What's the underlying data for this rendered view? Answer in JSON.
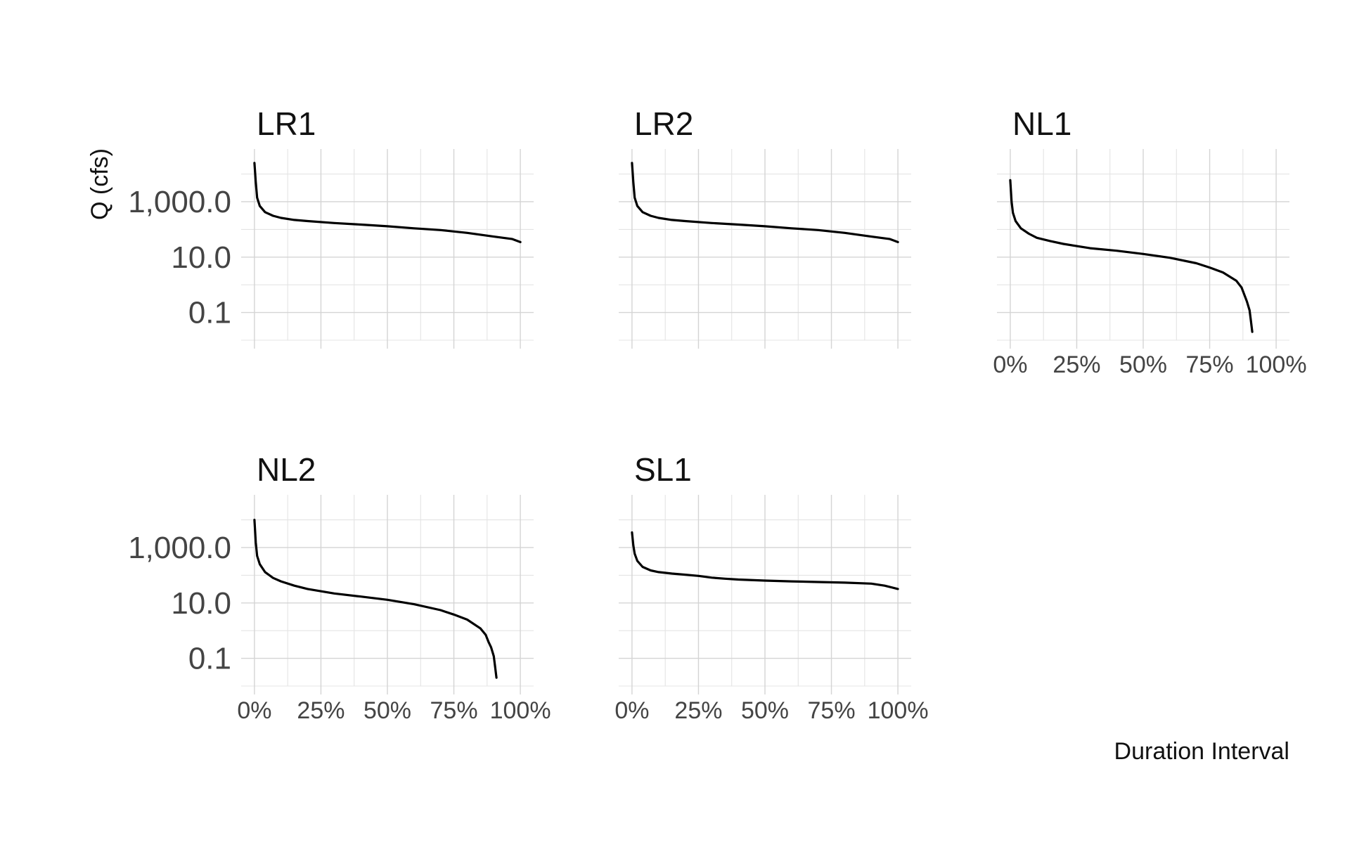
{
  "chart_data": {
    "type": "line",
    "title": "",
    "xlabel": "Duration Interval",
    "ylabel": "Q (cfs)",
    "x_scale": "linear",
    "y_scale": "log",
    "xlim": [
      -0.05,
      1.05
    ],
    "ylim": [
      0.01,
      80000
    ],
    "x_ticks": [
      0,
      0.25,
      0.5,
      0.75,
      1.0
    ],
    "x_tick_labels": [
      "0%",
      "25%",
      "50%",
      "75%",
      "100%"
    ],
    "y_ticks": [
      0.1,
      10,
      1000
    ],
    "y_tick_labels": [
      "0.1",
      "10.0",
      "1,000.0"
    ],
    "grid": true,
    "layout": "facet_wrap 3 columns, shared axes",
    "series_color": "#000000",
    "panels": [
      {
        "name": "LR1",
        "x": [
          0,
          0.005,
          0.01,
          0.02,
          0.04,
          0.07,
          0.1,
          0.15,
          0.2,
          0.3,
          0.4,
          0.5,
          0.6,
          0.7,
          0.8,
          0.9,
          0.97,
          1.0
        ],
        "y": [
          25000,
          5000,
          1400,
          700,
          420,
          310,
          260,
          220,
          200,
          170,
          150,
          130,
          110,
          95,
          75,
          55,
          45,
          35
        ]
      },
      {
        "name": "LR2",
        "x": [
          0,
          0.005,
          0.01,
          0.02,
          0.04,
          0.07,
          0.1,
          0.15,
          0.2,
          0.3,
          0.4,
          0.5,
          0.6,
          0.7,
          0.8,
          0.9,
          0.97,
          1.0
        ],
        "y": [
          25000,
          5000,
          1400,
          700,
          420,
          310,
          260,
          220,
          200,
          170,
          150,
          130,
          110,
          95,
          75,
          55,
          45,
          35
        ]
      },
      {
        "name": "NL1",
        "x": [
          0,
          0.005,
          0.01,
          0.02,
          0.04,
          0.07,
          0.1,
          0.15,
          0.2,
          0.3,
          0.4,
          0.5,
          0.6,
          0.7,
          0.75,
          0.8,
          0.85,
          0.87,
          0.88,
          0.89,
          0.9,
          0.905,
          0.91
        ],
        "y": [
          6000,
          1000,
          400,
          200,
          110,
          70,
          50,
          38,
          30,
          21,
          17,
          13,
          9.5,
          6,
          4.2,
          2.8,
          1.4,
          0.8,
          0.45,
          0.25,
          0.12,
          0.05,
          0.02
        ]
      },
      {
        "name": "NL2",
        "x": [
          0,
          0.005,
          0.01,
          0.02,
          0.04,
          0.07,
          0.1,
          0.15,
          0.2,
          0.3,
          0.4,
          0.5,
          0.6,
          0.7,
          0.75,
          0.8,
          0.85,
          0.87,
          0.88,
          0.89,
          0.9,
          0.905,
          0.91
        ],
        "y": [
          10000,
          1500,
          500,
          250,
          130,
          80,
          60,
          42,
          32,
          22,
          17,
          13,
          9,
          5.5,
          3.8,
          2.5,
          1.2,
          0.7,
          0.4,
          0.25,
          0.12,
          0.05,
          0.02
        ]
      },
      {
        "name": "SL1",
        "x": [
          0,
          0.005,
          0.01,
          0.02,
          0.04,
          0.07,
          0.1,
          0.15,
          0.2,
          0.25,
          0.3,
          0.35,
          0.4,
          0.5,
          0.6,
          0.7,
          0.8,
          0.9,
          0.95,
          1.0
        ],
        "y": [
          3500,
          1200,
          600,
          330,
          200,
          150,
          130,
          115,
          105,
          95,
          82,
          75,
          70,
          64,
          60,
          57,
          54,
          50,
          42,
          32
        ]
      }
    ]
  }
}
